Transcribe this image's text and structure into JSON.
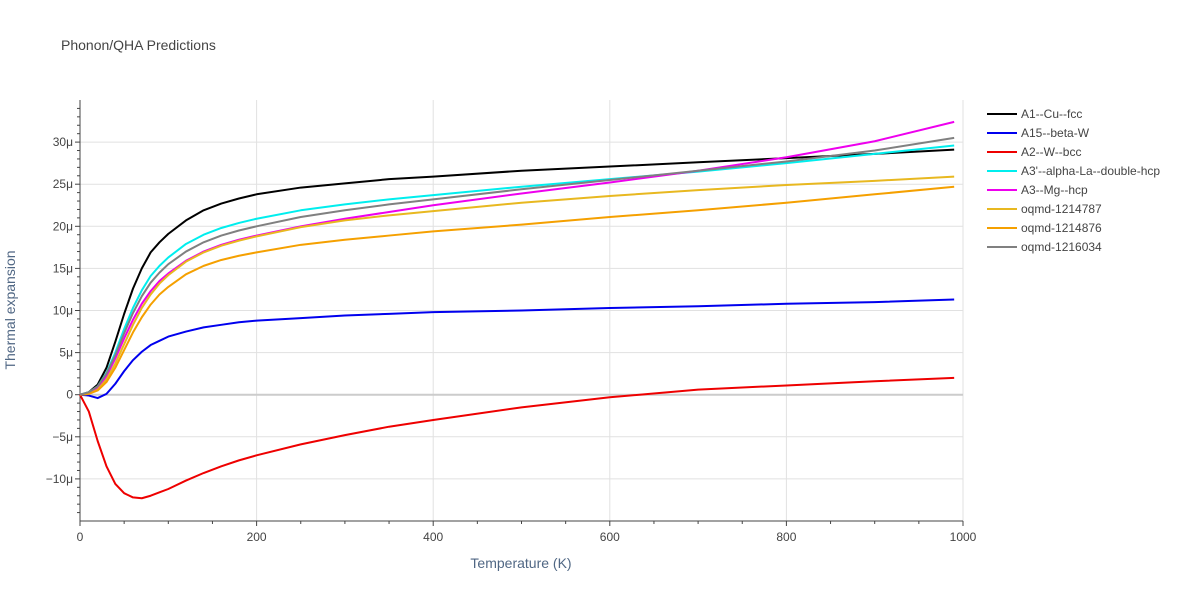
{
  "chart_data": {
    "type": "line",
    "title": "Phonon/QHA Predictions",
    "xlabel": "Temperature (K)",
    "ylabel": "Thermal expansion",
    "xlim": [
      0,
      1000
    ],
    "ylim": [
      -1.5e-05,
      3.5e-05
    ],
    "x_ticks": [
      0,
      200,
      400,
      600,
      800,
      1000
    ],
    "x_tick_labels": [
      "0",
      "200",
      "400",
      "600",
      "800",
      "1000"
    ],
    "y_ticks": [
      -1e-05,
      -5e-06,
      0,
      5e-06,
      1e-05,
      1.5e-05,
      2e-05,
      2.5e-05,
      3e-05
    ],
    "y_tick_labels": [
      "−10μ",
      "−5μ",
      "0",
      "5μ",
      "10μ",
      "15μ",
      "20μ",
      "25μ",
      "30μ"
    ],
    "grid": true,
    "legend_position": "right",
    "series": [
      {
        "name": "A1--Cu--fcc",
        "color": "#000000",
        "x": [
          0,
          10,
          20,
          30,
          40,
          50,
          60,
          70,
          80,
          90,
          100,
          120,
          140,
          160,
          180,
          200,
          250,
          300,
          350,
          400,
          500,
          600,
          700,
          800,
          900,
          990
        ],
        "y": [
          0,
          3e-07,
          1.2e-06,
          3.2e-06,
          6.3e-06,
          9.6e-06,
          1.26e-05,
          1.5e-05,
          1.69e-05,
          1.81e-05,
          1.91e-05,
          2.07e-05,
          2.19e-05,
          2.27e-05,
          2.33e-05,
          2.38e-05,
          2.46e-05,
          2.51e-05,
          2.56e-05,
          2.59e-05,
          2.66e-05,
          2.71e-05,
          2.76e-05,
          2.81e-05,
          2.86e-05,
          2.91e-05
        ]
      },
      {
        "name": "A15--beta-W",
        "color": "#0000ee",
        "x": [
          0,
          10,
          20,
          30,
          40,
          50,
          60,
          70,
          80,
          90,
          100,
          120,
          140,
          160,
          180,
          200,
          250,
          300,
          350,
          400,
          500,
          600,
          700,
          800,
          900,
          990
        ],
        "y": [
          0,
          -1e-07,
          -4e-07,
          1e-07,
          1.3e-06,
          2.8e-06,
          4.1e-06,
          5.1e-06,
          5.9e-06,
          6.4e-06,
          6.9e-06,
          7.5e-06,
          8e-06,
          8.3e-06,
          8.6e-06,
          8.8e-06,
          9.1e-06,
          9.4e-06,
          9.6e-06,
          9.8e-06,
          1e-05,
          1.03e-05,
          1.05e-05,
          1.08e-05,
          1.1e-05,
          1.13e-05
        ]
      },
      {
        "name": "A2--W--bcc",
        "color": "#ee0000",
        "x": [
          0,
          10,
          20,
          30,
          40,
          50,
          60,
          70,
          80,
          90,
          100,
          120,
          140,
          160,
          180,
          200,
          250,
          300,
          350,
          400,
          500,
          600,
          700,
          800,
          900,
          990
        ],
        "y": [
          0,
          -2e-06,
          -5.5e-06,
          -8.5e-06,
          -1.06e-05,
          -1.17e-05,
          -1.22e-05,
          -1.23e-05,
          -1.2e-05,
          -1.16e-05,
          -1.12e-05,
          -1.02e-05,
          -9.3e-06,
          -8.5e-06,
          -7.8e-06,
          -7.2e-06,
          -5.9e-06,
          -4.8e-06,
          -3.8e-06,
          -3e-06,
          -1.5e-06,
          -3e-07,
          6e-07,
          1.1e-06,
          1.6e-06,
          2e-06
        ]
      },
      {
        "name": "A3'--alpha-La--double-hcp",
        "color": "#00eeee",
        "x": [
          0,
          10,
          20,
          30,
          40,
          50,
          60,
          70,
          80,
          90,
          100,
          120,
          140,
          160,
          180,
          200,
          250,
          300,
          350,
          400,
          500,
          600,
          700,
          800,
          900,
          990
        ],
        "y": [
          0,
          3e-07,
          1e-06,
          2.6e-06,
          5e-06,
          7.8e-06,
          1.03e-05,
          1.24e-05,
          1.41e-05,
          1.53e-05,
          1.63e-05,
          1.79e-05,
          1.9e-05,
          1.98e-05,
          2.04e-05,
          2.09e-05,
          2.19e-05,
          2.26e-05,
          2.32e-05,
          2.37e-05,
          2.47e-05,
          2.56e-05,
          2.65e-05,
          2.75e-05,
          2.86e-05,
          2.96e-05
        ]
      },
      {
        "name": "A3--Mg--hcp",
        "color": "#ee00ee",
        "x": [
          0,
          10,
          20,
          30,
          40,
          50,
          60,
          70,
          80,
          90,
          100,
          120,
          140,
          160,
          180,
          200,
          250,
          300,
          350,
          400,
          500,
          600,
          700,
          800,
          900,
          990
        ],
        "y": [
          0,
          2e-07,
          8e-07,
          2.2e-06,
          4.3e-06,
          6.7e-06,
          8.9e-06,
          1.08e-05,
          1.23e-05,
          1.35e-05,
          1.44e-05,
          1.59e-05,
          1.7e-05,
          1.78e-05,
          1.84e-05,
          1.89e-05,
          2e-05,
          2.09e-05,
          2.17e-05,
          2.25e-05,
          2.39e-05,
          2.52e-05,
          2.66e-05,
          2.82e-05,
          3.01e-05,
          3.24e-05
        ]
      },
      {
        "name": "oqmd-1214787",
        "color": "#e8b820",
        "x": [
          0,
          10,
          20,
          30,
          40,
          50,
          60,
          70,
          80,
          90,
          100,
          120,
          140,
          160,
          180,
          200,
          250,
          300,
          350,
          400,
          500,
          600,
          700,
          800,
          900,
          990
        ],
        "y": [
          0,
          1e-07,
          6e-07,
          1.8e-06,
          3.7e-06,
          6e-06,
          8.3e-06,
          1.03e-05,
          1.19e-05,
          1.32e-05,
          1.42e-05,
          1.58e-05,
          1.69e-05,
          1.77e-05,
          1.83e-05,
          1.88e-05,
          1.99e-05,
          2.07e-05,
          2.13e-05,
          2.18e-05,
          2.28e-05,
          2.36e-05,
          2.43e-05,
          2.49e-05,
          2.54e-05,
          2.59e-05
        ]
      },
      {
        "name": "oqmd-1214876",
        "color": "#f5a000",
        "x": [
          0,
          10,
          20,
          30,
          40,
          50,
          60,
          70,
          80,
          90,
          100,
          120,
          140,
          160,
          180,
          200,
          250,
          300,
          350,
          400,
          500,
          600,
          700,
          800,
          900,
          990
        ],
        "y": [
          0,
          1e-07,
          5e-07,
          1.5e-06,
          3.2e-06,
          5.3e-06,
          7.4e-06,
          9.2e-06,
          1.07e-05,
          1.19e-05,
          1.28e-05,
          1.43e-05,
          1.53e-05,
          1.6e-05,
          1.65e-05,
          1.69e-05,
          1.78e-05,
          1.84e-05,
          1.89e-05,
          1.94e-05,
          2.02e-05,
          2.11e-05,
          2.19e-05,
          2.28e-05,
          2.38e-05,
          2.47e-05
        ]
      },
      {
        "name": "oqmd-1216034",
        "color": "#808080",
        "x": [
          0,
          10,
          20,
          30,
          40,
          50,
          60,
          70,
          80,
          90,
          100,
          120,
          140,
          160,
          180,
          200,
          250,
          300,
          350,
          400,
          500,
          600,
          700,
          800,
          900,
          990
        ],
        "y": [
          0,
          3e-07,
          1e-06,
          2.5e-06,
          4.7e-06,
          7.3e-06,
          9.7e-06,
          1.17e-05,
          1.33e-05,
          1.45e-05,
          1.55e-05,
          1.7e-05,
          1.81e-05,
          1.89e-05,
          1.95e-05,
          2e-05,
          2.11e-05,
          2.19e-05,
          2.26e-05,
          2.32e-05,
          2.44e-05,
          2.55e-05,
          2.66e-05,
          2.77e-05,
          2.9e-05,
          3.05e-05
        ]
      }
    ]
  }
}
